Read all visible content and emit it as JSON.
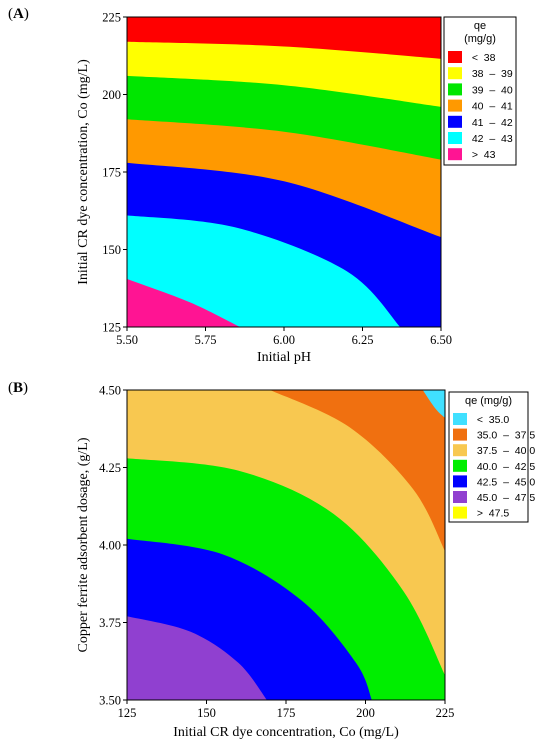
{
  "chart_data": [
    {
      "type": "contour",
      "panel_label": "A",
      "xlabel": "Initial pH",
      "ylabel": "Initial CR dye concentration, Co (mg/L)",
      "xlim": [
        5.5,
        6.5
      ],
      "ylim": [
        125,
        225
      ],
      "xticks": [
        "5.50",
        "5.75",
        "6.00",
        "6.25",
        "6.50"
      ],
      "yticks": [
        "125",
        "150",
        "175",
        "200",
        "225"
      ],
      "legend_title": [
        "qe",
        "(mg/g)"
      ],
      "legend_position": "right",
      "levels": [
        {
          "label": "<  38",
          "color": "#ff0000"
        },
        {
          "label": "38  –  39",
          "color": "#ffff00"
        },
        {
          "label": "39  –  40",
          "color": "#00e600"
        },
        {
          "label": "40  –  41",
          "color": "#ff9900"
        },
        {
          "label": "41  –  42",
          "color": "#0000ff"
        },
        {
          "label": "42  –  43",
          "color": "#00ffff"
        },
        {
          "label": ">  43",
          "color": "#ff1493"
        }
      ],
      "contour_boundaries": [
        {
          "between": [
            "<  38",
            "38  –  39"
          ],
          "points": [
            [
              5.5,
              217
            ],
            [
              6.0,
              215.5
            ],
            [
              6.5,
              211.5
            ]
          ]
        },
        {
          "between": [
            "38  –  39",
            "39  –  40"
          ],
          "points": [
            [
              5.5,
              206
            ],
            [
              6.0,
              203
            ],
            [
              6.5,
              196
            ]
          ]
        },
        {
          "between": [
            "39  –  40",
            "40  –  41"
          ],
          "points": [
            [
              5.5,
              192
            ],
            [
              6.0,
              188
            ],
            [
              6.5,
              179
            ]
          ]
        },
        {
          "between": [
            "40  –  41",
            "41  –  42"
          ],
          "points": [
            [
              5.5,
              178
            ],
            [
              6.0,
              172
            ],
            [
              6.5,
              154
            ]
          ]
        },
        {
          "between": [
            "41  –  42",
            "42  –  43"
          ],
          "points": [
            [
              5.5,
              161
            ],
            [
              5.85,
              157
            ],
            [
              6.2,
              143
            ],
            [
              6.37,
              125
            ]
          ]
        },
        {
          "between": [
            "42  –  43",
            ">  43"
          ],
          "points": [
            [
              5.5,
              140.5
            ],
            [
              5.7,
              133
            ],
            [
              5.86,
              125
            ]
          ]
        }
      ]
    },
    {
      "type": "contour",
      "panel_label": "B",
      "xlabel": "Initial CR dye concentration, Co (mg/L)",
      "ylabel": "Copper ferrite adsorbent dosage, (g/L)",
      "xlim": [
        125,
        225
      ],
      "ylim": [
        3.5,
        4.5
      ],
      "xticks": [
        "125",
        "150",
        "175",
        "200",
        "225"
      ],
      "yticks": [
        "3.50",
        "3.75",
        "4.00",
        "4.25",
        "4.50"
      ],
      "legend_title": [
        "qe (mg/g)"
      ],
      "legend_position": "right",
      "levels": [
        {
          "label": "<  35.0",
          "color": "#40e0ff"
        },
        {
          "label": "35.0  –  37.5",
          "color": "#f07010"
        },
        {
          "label": "37.5  –  40.0",
          "color": "#f8c850"
        },
        {
          "label": "40.0  –  42.5",
          "color": "#00ee00"
        },
        {
          "label": "42.5  –  45.0",
          "color": "#0000ff"
        },
        {
          "label": "45.0  –  47.5",
          "color": "#9040d0"
        },
        {
          "label": ">  47.5",
          "color": "#ffff00"
        }
      ],
      "contour_boundaries": [
        {
          "between": [
            "<  35.0",
            "35.0  –  37.5"
          ],
          "points": [
            [
              218,
              4.5
            ],
            [
              222,
              4.44
            ],
            [
              225,
              4.41
            ]
          ]
        },
        {
          "between": [
            "35.0  –  37.5",
            "37.5  –  40.0"
          ],
          "points": [
            [
              170,
              4.5
            ],
            [
              195,
              4.38
            ],
            [
              215,
              4.18
            ],
            [
              225,
              3.98
            ]
          ]
        },
        {
          "between": [
            "37.5  –  40.0",
            "40.0  –  42.5"
          ],
          "points": [
            [
              125,
              4.28
            ],
            [
              160,
              4.24
            ],
            [
              190,
              4.1
            ],
            [
              212,
              3.85
            ],
            [
              225,
              3.58
            ]
          ]
        },
        {
          "between": [
            "40.0  –  42.5",
            "42.5  –  45.0"
          ],
          "points": [
            [
              125,
              4.02
            ],
            [
              155,
              3.97
            ],
            [
              180,
              3.82
            ],
            [
              197,
              3.62
            ],
            [
              202,
              3.5
            ]
          ]
        },
        {
          "between": [
            "42.5  –  45.0",
            "45.0  –  47.5"
          ],
          "points": [
            [
              125,
              3.77
            ],
            [
              145,
              3.72
            ],
            [
              160,
              3.62
            ],
            [
              169,
              3.5
            ]
          ]
        }
      ]
    }
  ]
}
